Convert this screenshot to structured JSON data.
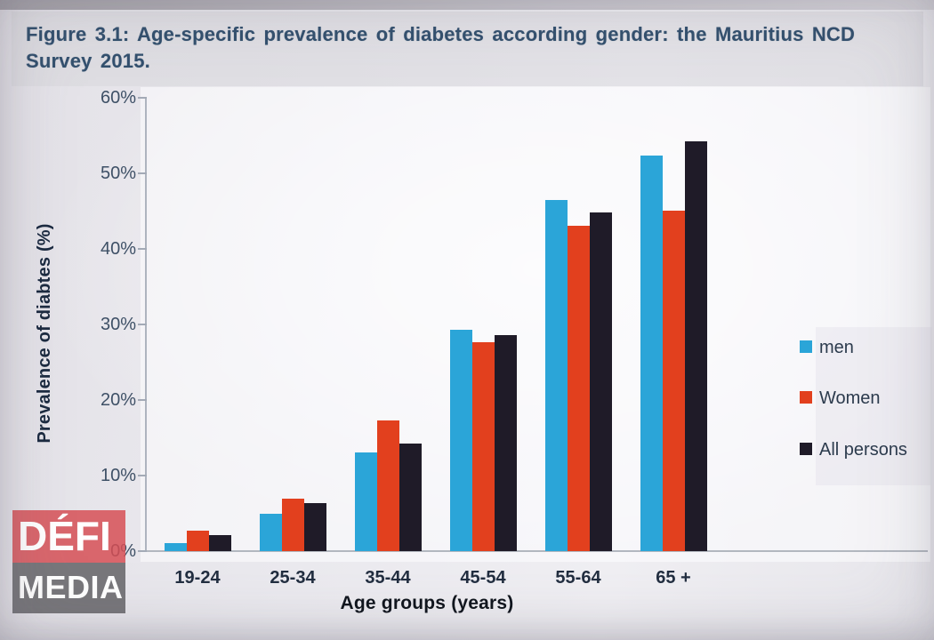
{
  "figure_title": "Figure 3.1: Age-specific prevalence of diabetes according gender: the Mauritius NCD Survey 2015.",
  "watermark": {
    "line1": "DÉFI",
    "line2": "MEDIA"
  },
  "chart_data": {
    "type": "bar",
    "title": "Figure 3.1: Age-specific prevalence of diabetes according gender: the Mauritius NCD Survey 2015.",
    "xlabel": "Age groups (years)",
    "ylabel": "Prevalence of diabtes (%)",
    "ylim": [
      0,
      60
    ],
    "ytick_labels": [
      "0%",
      "10%",
      "20%",
      "30%",
      "40%",
      "50%",
      "60%"
    ],
    "grid": false,
    "legend_position": "right",
    "categories": [
      "19-24",
      "25-34",
      "35-44",
      "45-54",
      "55-64",
      "65 +"
    ],
    "series": [
      {
        "name": "men",
        "color": "#2BA5D8",
        "values": [
          1.0,
          4.9,
          13.0,
          29.3,
          46.5,
          52.3
        ]
      },
      {
        "name": "Women",
        "color": "#E2401E",
        "values": [
          2.7,
          6.9,
          17.3,
          27.7,
          43.0,
          45.0
        ]
      },
      {
        "name": "All persons",
        "color": "#1F1B28",
        "values": [
          2.1,
          6.4,
          14.2,
          28.6,
          44.8,
          54.2
        ]
      }
    ]
  }
}
